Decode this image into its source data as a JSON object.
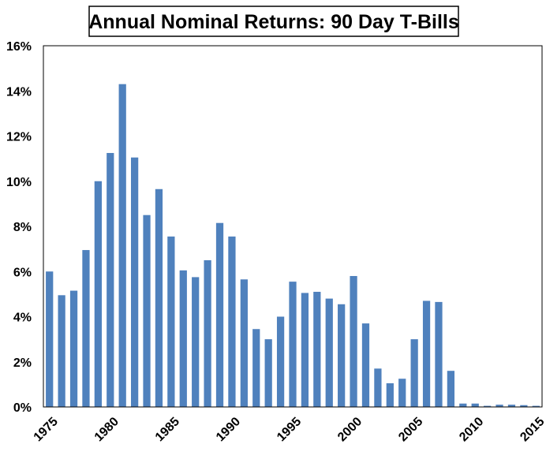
{
  "chart_data": {
    "type": "bar",
    "title": "Annual Nominal Returns: 90 Day T-Bills",
    "xlabel": "",
    "ylabel": "",
    "ylim": [
      0,
      16
    ],
    "y_ticks": [
      "0%",
      "2%",
      "4%",
      "6%",
      "8%",
      "10%",
      "12%",
      "14%",
      "16%"
    ],
    "x_tick_labels": [
      "1975",
      "1980",
      "1985",
      "1990",
      "1995",
      "2000",
      "2005",
      "2010",
      "2015"
    ],
    "categories": [
      1975,
      1976,
      1977,
      1978,
      1979,
      1980,
      1981,
      1982,
      1983,
      1984,
      1985,
      1986,
      1987,
      1988,
      1989,
      1990,
      1991,
      1992,
      1993,
      1994,
      1995,
      1996,
      1997,
      1998,
      1999,
      2000,
      2001,
      2002,
      2003,
      2004,
      2005,
      2006,
      2007,
      2008,
      2009,
      2010,
      2011,
      2012,
      2013,
      2014,
      2015
    ],
    "series": [
      {
        "values": [
          6.0,
          4.95,
          5.15,
          6.95,
          10.0,
          11.25,
          14.3,
          11.05,
          8.5,
          9.65,
          7.55,
          6.05,
          5.75,
          6.5,
          8.15,
          7.55,
          5.65,
          3.45,
          3.0,
          4.0,
          5.55,
          5.05,
          5.1,
          4.8,
          4.55,
          5.8,
          3.7,
          1.7,
          1.05,
          1.25,
          3.0,
          4.7,
          4.65,
          1.6,
          0.15,
          0.15,
          0.05,
          0.1,
          0.1,
          0.08,
          0.05
        ],
        "color": "#4F81BD"
      }
    ],
    "grid": false,
    "legend": "none"
  }
}
